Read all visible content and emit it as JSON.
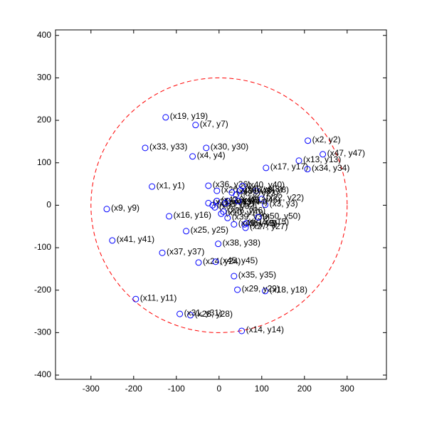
{
  "chart_data": {
    "type": "scatter",
    "x": [
      -157,
      208,
      108,
      -62,
      60,
      20,
      -55,
      87,
      -263,
      5,
      -195,
      -15,
      187,
      53,
      65,
      -117,
      110,
      108,
      -125,
      -5,
      -25,
      100,
      40,
      -48,
      -77,
      10,
      62,
      -67,
      43,
      -30,
      -92,
      -10,
      -173,
      207,
      35,
      -25,
      -133,
      -2,
      20,
      55,
      -250,
      -5,
      30,
      15,
      -8,
      45,
      243,
      50,
      35,
      92
    ],
    "values": [
      44,
      152,
      1,
      115,
      -45,
      10,
      189,
      34,
      -9,
      -20,
      -221,
      0,
      105,
      -296,
      -42,
      -26,
      88,
      -202,
      207,
      34,
      5,
      15,
      25,
      -135,
      -61,
      -15,
      -53,
      -259,
      -199,
      135,
      -256,
      -5,
      135,
      85,
      -167,
      46,
      -112,
      -91,
      -30,
      45,
      -83,
      10,
      30,
      5,
      -133,
      10,
      120,
      35,
      -45,
      -28
    ],
    "labels": [
      "(x1, y1)",
      "(x2, y2)",
      "(x3, y3)",
      "(x4, y4)",
      "(x5, y5)",
      "(x6, y6)",
      "(x7, y7)",
      "(x8, y8)",
      "(x9, y9)",
      "(x10, y10)",
      "(x11, y11)",
      "(x12, y12)",
      "(x13, y13)",
      "(x14, y14)",
      "(x15, y15)",
      "(x16, y16)",
      "(x17, y17)",
      "(x18, y18)",
      "(x19, y19)",
      "(x20, y20)",
      "(x21, y21)",
      "(x22, y22)",
      "(x23, y23)",
      "(x24, y24)",
      "(x25, y25)",
      "(x26, y26)",
      "(x27, y27)",
      "(x28, y28)",
      "(x29, y29)",
      "(x30, y30)",
      "(x31, y31)",
      "(x32, y32)",
      "(x33, y33)",
      "(x34, y34)",
      "(x35, y35)",
      "(x36, y36)",
      "(x37, y37)",
      "(x38, y38)",
      "(x39, y39)",
      "(x40, y40)",
      "(x41, y41)",
      "(x42, y42)",
      "(x43, y43)",
      "(x44, y44)",
      "(x45, y45)",
      "(x46, y46)",
      "(x47, y47)",
      "(x48, y48)",
      "(x49, y49)",
      "(x50, y50)"
    ],
    "color": "#0000ff",
    "circle_radius": 300,
    "circle_color": "#ff0000",
    "xlim": [
      -383,
      392
    ],
    "ylim": [
      -410,
      413
    ],
    "xticks": [
      -300,
      -200,
      -100,
      0,
      100,
      200,
      300
    ],
    "yticks": [
      -400,
      -300,
      -200,
      -100,
      0,
      100,
      200,
      300,
      400
    ]
  }
}
